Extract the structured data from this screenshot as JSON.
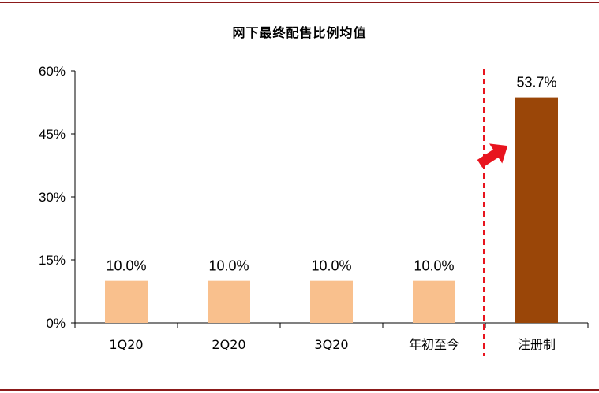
{
  "chart_data": {
    "type": "bar",
    "title": "网下最终配售比例均值",
    "categories": [
      "1Q20",
      "2Q20",
      "3Q20",
      "年初至今",
      "注册制"
    ],
    "values": [
      10.0,
      10.0,
      10.0,
      10.0,
      53.7
    ],
    "data_labels": [
      "10.0%",
      "10.0%",
      "10.0%",
      "10.0%",
      "53.7%"
    ],
    "bar_colors": [
      "#f9c08d",
      "#f9c08d",
      "#f9c08d",
      "#f9c08d",
      "#9a4608"
    ],
    "ylim": [
      0,
      60
    ],
    "yticks": [
      0,
      15,
      30,
      45,
      60
    ],
    "ytick_labels": [
      "0%",
      "15%",
      "30%",
      "45%",
      "60%"
    ],
    "xlabel": "",
    "ylabel": "",
    "grid": false,
    "divider_color": "#e8141e",
    "arrow_color": "#e8141e",
    "rule_color": "#8b1a1a"
  }
}
